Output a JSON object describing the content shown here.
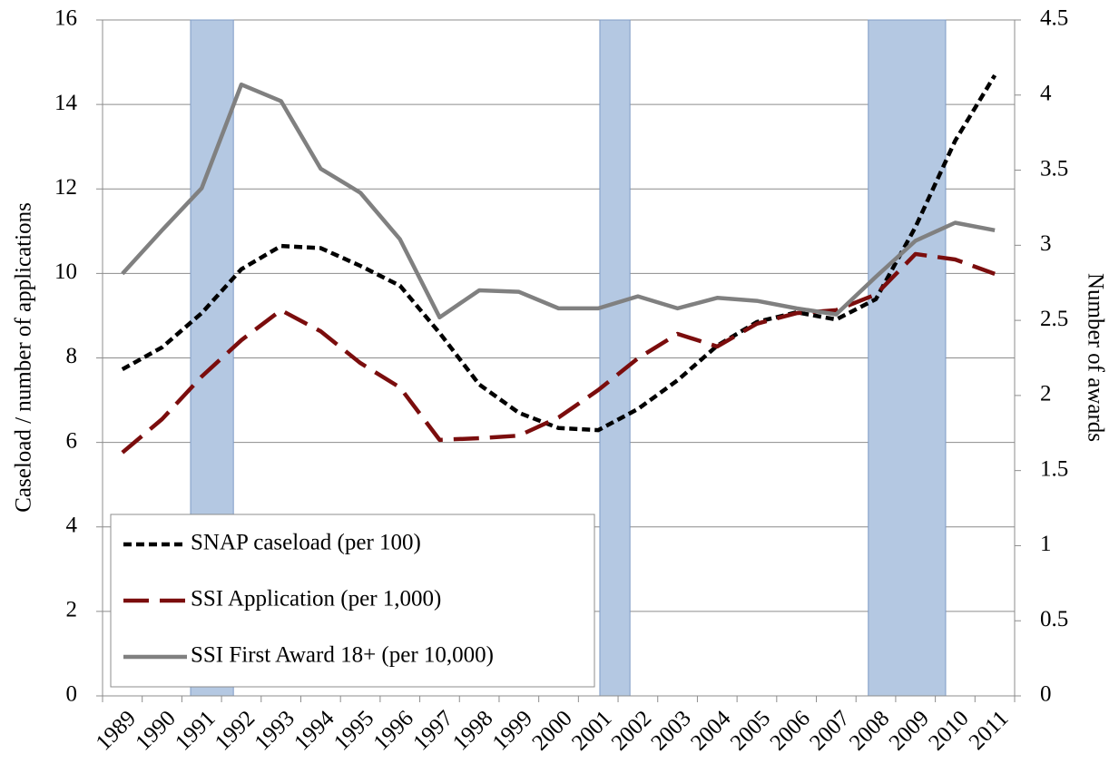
{
  "chart_data": {
    "type": "line",
    "categories": [
      "1989",
      "1990",
      "1991",
      "1992",
      "1993",
      "1994",
      "1995",
      "1996",
      "1997",
      "1998",
      "1999",
      "2000",
      "2001",
      "2002",
      "2003",
      "2004",
      "2005",
      "2006",
      "2007",
      "2008",
      "2009",
      "2010",
      "2011"
    ],
    "y_label": "Caseload / number of applications",
    "y2_label": "Number of awards",
    "ylim": [
      0,
      16
    ],
    "yticks": [
      0,
      2,
      4,
      6,
      8,
      10,
      12,
      14,
      16
    ],
    "y2lim": [
      0,
      4.5
    ],
    "y2ticks": [
      0,
      0.5,
      1,
      1.5,
      2,
      2.5,
      3,
      3.5,
      4,
      4.5
    ],
    "grid": true,
    "legend": "lower left",
    "shading_color": "#b4c8e2",
    "shaded_periods": [
      {
        "start": 1990.72,
        "end": 1991.8
      },
      {
        "start": 2001.04,
        "end": 2001.8
      },
      {
        "start": 2007.81,
        "end": 2009.76
      }
    ],
    "series": [
      {
        "name": "SNAP caseload (per 100)",
        "color": "#000000",
        "dash": "short",
        "values": [
          7.73,
          8.25,
          9.06,
          10.1,
          10.65,
          10.6,
          10.18,
          9.71,
          8.59,
          7.37,
          6.7,
          6.34,
          6.29,
          6.79,
          7.47,
          8.29,
          8.85,
          9.08,
          8.91,
          9.39,
          11.1,
          13.14,
          14.69
        ]
      },
      {
        "name": "SSI Application (per 1,000)",
        "color": "#7b0d0d",
        "dash": "long",
        "values": [
          5.76,
          6.55,
          7.56,
          8.42,
          9.13,
          8.63,
          7.88,
          7.3,
          6.06,
          6.1,
          6.16,
          6.59,
          7.24,
          7.99,
          8.57,
          8.27,
          8.81,
          9.06,
          9.13,
          9.5,
          10.46,
          10.33,
          9.99
        ]
      },
      {
        "name": "SSI First Award 18+ (per 10,000)",
        "color": "#808080",
        "dash": "solid",
        "axis": "y2",
        "values": [
          2.81,
          3.1,
          3.38,
          4.07,
          3.96,
          3.51,
          3.35,
          3.04,
          2.52,
          2.7,
          2.69,
          2.58,
          2.58,
          2.66,
          2.58,
          2.65,
          2.63,
          2.58,
          2.54,
          2.79,
          3.03,
          3.15,
          3.1
        ]
      }
    ]
  }
}
